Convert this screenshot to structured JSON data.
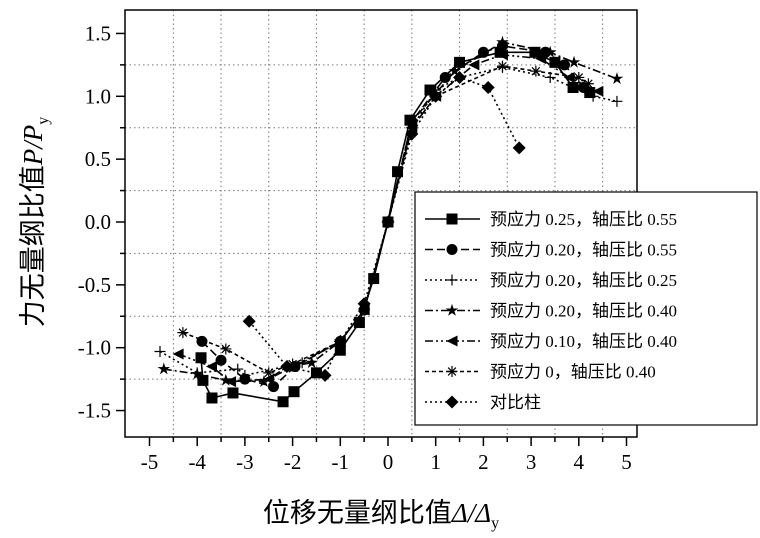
{
  "chart_data": {
    "type": "line",
    "title": "",
    "xlabel": "位移无量纲比值",
    "xlabel_symbol": "Δ/Δ",
    "xlabel_sub": "y",
    "ylabel": "力无量纲比值",
    "ylabel_symbol": "P/P",
    "ylabel_sub": "y",
    "xlim": [
      -5.5,
      5.3
    ],
    "ylim": [
      -1.7,
      1.7
    ],
    "xticks": [
      "-5",
      "-4",
      "-3",
      "-2",
      "-1",
      "0",
      "1",
      "2",
      "3",
      "4",
      "5"
    ],
    "yticks": [
      "-1.5",
      "-1.0",
      "-0.5",
      "0.0",
      "0.5",
      "1.0",
      "1.5"
    ],
    "xtick_values": [
      -5,
      -4,
      -3,
      -2,
      -1,
      0,
      1,
      2,
      3,
      4,
      5
    ],
    "ytick_values": [
      -1.5,
      -1.0,
      -0.5,
      0,
      0.5,
      1.0,
      1.5
    ],
    "grid": true,
    "legend_position": "bottom-right",
    "series": [
      {
        "name": "预应力 0.25，轴压比 0.55",
        "marker": "square",
        "dash": "solid",
        "x": [
          -3.92,
          -3.88,
          -3.69,
          -3.25,
          -2.2,
          -1.97,
          -1.5,
          -1.0,
          -0.6,
          -0.3,
          0,
          0.2,
          0.46,
          0.88,
          1.5,
          2.35,
          3.08,
          3.5,
          3.88,
          4.23
        ],
        "y": [
          -1.08,
          -1.26,
          -1.4,
          -1.36,
          -1.43,
          -1.35,
          -1.2,
          -1.02,
          -0.8,
          -0.45,
          0,
          0.4,
          0.81,
          1.05,
          1.27,
          1.35,
          1.35,
          1.27,
          1.07,
          1.03
        ]
      },
      {
        "name": "预应力 0.20，轴压比 0.55",
        "marker": "circle",
        "dash": "dashed",
        "x": [
          -3.9,
          -3.5,
          -3.0,
          -2.4,
          -1.95,
          -1.0,
          -0.5,
          0,
          0.5,
          1.2,
          2.0,
          2.4,
          3.3,
          3.7,
          4.1
        ],
        "y": [
          -0.95,
          -1.1,
          -1.25,
          -1.31,
          -1.15,
          -0.95,
          -0.7,
          0,
          0.8,
          1.15,
          1.35,
          1.4,
          1.35,
          1.25,
          1.07
        ]
      },
      {
        "name": "预应力 0.20，轴压比 0.25",
        "marker": "plus",
        "dash": "dotted",
        "x": [
          -4.78,
          -4.0,
          -3.15,
          -3.0,
          -1.8,
          -1.0,
          -0.5,
          0,
          0.5,
          1.0,
          1.5,
          2.4,
          3.4,
          4.3,
          4.8
        ],
        "y": [
          -1.03,
          -1.2,
          -1.17,
          -1.22,
          -1.12,
          -0.95,
          -0.7,
          0,
          0.75,
          1.05,
          1.15,
          1.23,
          1.15,
          1.0,
          0.96
        ]
      },
      {
        "name": "预应力 0.20，轴压比 0.40",
        "marker": "star",
        "dash": "dashdot",
        "x": [
          -4.7,
          -4.0,
          -3.4,
          -2.6,
          -2.1,
          -1.6,
          -1.0,
          -0.5,
          0,
          0.5,
          1.4,
          2.4,
          3.4,
          3.9,
          4.8
        ],
        "y": [
          -1.17,
          -1.21,
          -1.26,
          -1.27,
          -1.15,
          -1.12,
          -0.95,
          -0.7,
          0,
          0.8,
          1.2,
          1.43,
          1.35,
          1.27,
          1.14
        ]
      },
      {
        "name": "预应力 0.10，轴压比 0.40",
        "marker": "triangle-left",
        "dash": "dashdotdot",
        "x": [
          -4.4,
          -3.7,
          -3.3,
          -2.5,
          -2.0,
          -1.0,
          -0.5,
          0,
          0.5,
          1.0,
          1.8,
          2.4,
          3.2,
          3.8,
          4.4
        ],
        "y": [
          -1.05,
          -1.15,
          -1.27,
          -1.25,
          -1.15,
          -0.95,
          -0.7,
          0,
          0.75,
          1.0,
          1.25,
          1.33,
          1.3,
          1.15,
          1.04
        ]
      },
      {
        "name": "预应力 0，轴压比 0.40",
        "marker": "asterisk",
        "dash": "shortdash",
        "x": [
          -4.3,
          -3.4,
          -2.5,
          -2.0,
          -1.0,
          -0.5,
          0,
          0.5,
          1.0,
          2.4,
          3.1,
          4.0,
          4.2
        ],
        "y": [
          -0.88,
          -1.01,
          -1.2,
          -1.13,
          -0.95,
          -0.7,
          0,
          0.75,
          1.0,
          1.24,
          1.2,
          1.15,
          1.1
        ]
      },
      {
        "name": "对比柱",
        "marker": "diamond",
        "dash": "dotted",
        "x": [
          -2.91,
          -2.12,
          -1.32,
          -1.0,
          -0.5,
          0,
          0.5,
          1.0,
          1.5,
          2.1,
          2.75
        ],
        "y": [
          -0.79,
          -1.15,
          -1.22,
          -0.95,
          -0.65,
          0,
          0.7,
          1.0,
          1.15,
          1.07,
          0.59
        ]
      }
    ]
  }
}
